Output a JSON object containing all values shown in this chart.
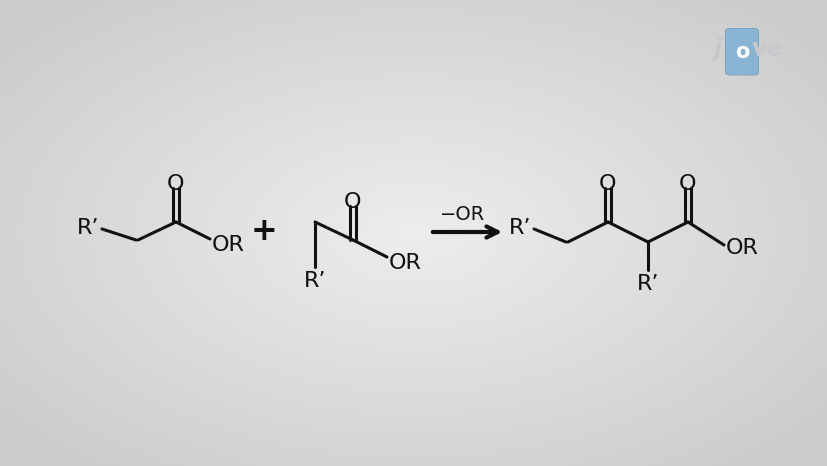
{
  "bg_light": 0.93,
  "bg_dark": 0.8,
  "line_color": "#111111",
  "line_width": 2.2,
  "font_size": 15,
  "font_family": "Arial",
  "arrow_label": "−OR",
  "plus_sign": "+",
  "mol1_rp": "R’",
  "mol2_rp": "R’",
  "prod_rp1": "R’",
  "prod_rp2": "R’",
  "O_label": "O",
  "OR_label": "OR",
  "jove_color": "#c8c8cc"
}
